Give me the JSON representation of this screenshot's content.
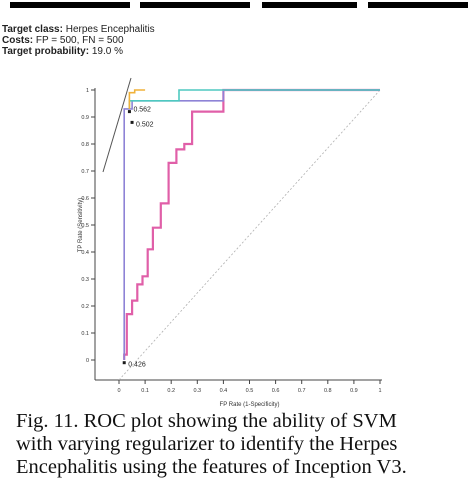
{
  "header": {
    "target_class_label": "Target class:",
    "target_class_value": "Herpes Encephalitis",
    "costs_label": "Costs:",
    "costs_value": "FP = 500, FN = 500",
    "target_probability_label": "Target probability:",
    "target_probability_value": "19.0 %"
  },
  "caption": {
    "line1": "Fig. 11. ROC plot showing the ability of SVM",
    "line2": "with varying regularizer to identify the Herpes",
    "line3": "Encephalitis using the features of Inception V3."
  },
  "chart_data": {
    "type": "line",
    "title": "",
    "xlabel": "FP Rate (1-Specificity)",
    "ylabel": "TP Rate (Sensitivity)",
    "xlim": [
      0,
      1
    ],
    "ylim": [
      0,
      1
    ],
    "x_ticks": [
      "0",
      "0.2",
      "0.4",
      "0.6",
      "0.8",
      "1"
    ],
    "x_ticks_minor": [
      "0.1",
      "0.3",
      "0.5",
      "0.7",
      "0.9"
    ],
    "y_ticks": [
      "0",
      "0.2",
      "0.4",
      "0.6",
      "0.8",
      "1"
    ],
    "y_ticks_minor": [
      "0.1",
      "0.3",
      "0.5",
      "0.7",
      "0.9"
    ],
    "grid": false,
    "series": [
      {
        "color": "#e05fa8",
        "points": [
          [
            0.02,
            0
          ],
          [
            0.02,
            0.02
          ],
          [
            0.03,
            0.02
          ],
          [
            0.03,
            0.17
          ],
          [
            0.05,
            0.17
          ],
          [
            0.05,
            0.22
          ],
          [
            0.07,
            0.22
          ],
          [
            0.07,
            0.28
          ],
          [
            0.09,
            0.28
          ],
          [
            0.09,
            0.31
          ],
          [
            0.11,
            0.31
          ],
          [
            0.11,
            0.41
          ],
          [
            0.13,
            0.41
          ],
          [
            0.13,
            0.49
          ],
          [
            0.16,
            0.49
          ],
          [
            0.16,
            0.58
          ],
          [
            0.19,
            0.58
          ],
          [
            0.19,
            0.73
          ],
          [
            0.22,
            0.73
          ],
          [
            0.22,
            0.78
          ],
          [
            0.25,
            0.78
          ],
          [
            0.25,
            0.8
          ],
          [
            0.28,
            0.8
          ],
          [
            0.28,
            0.92
          ],
          [
            0.4,
            0.92
          ],
          [
            0.4,
            1.0
          ],
          [
            1.0,
            1.0
          ]
        ]
      },
      {
        "color": "#8e83d6",
        "points": [
          [
            0.02,
            0
          ],
          [
            0.02,
            0.93
          ],
          [
            0.05,
            0.93
          ],
          [
            0.05,
            0.96
          ],
          [
            0.4,
            0.96
          ],
          [
            0.4,
            1.0
          ],
          [
            1.0,
            1.0
          ]
        ]
      },
      {
        "color": "#4ec9c0",
        "points": [
          [
            0.04,
            0.93
          ],
          [
            0.04,
            0.96
          ],
          [
            0.23,
            0.96
          ],
          [
            0.23,
            1.0
          ],
          [
            1.0,
            1.0
          ]
        ]
      },
      {
        "color": "#f0b23a",
        "points": [
          [
            0.04,
            0.93
          ],
          [
            0.04,
            0.99
          ],
          [
            0.06,
            0.99
          ],
          [
            0.06,
            1.0
          ],
          [
            0.1,
            1.0
          ]
        ]
      }
    ],
    "annotations": [
      {
        "text": "0.502",
        "x": 0.05,
        "y": 0.88
      },
      {
        "text": "0.426",
        "x": 0.02,
        "y": -0.01
      },
      {
        "text": "0.562",
        "x": 0.04,
        "y": 0.92
      }
    ],
    "colors": {
      "axis": "#444444",
      "diagonal": "#b0b0b0",
      "hull": "#555555",
      "marker": "#1a1a1a"
    }
  }
}
